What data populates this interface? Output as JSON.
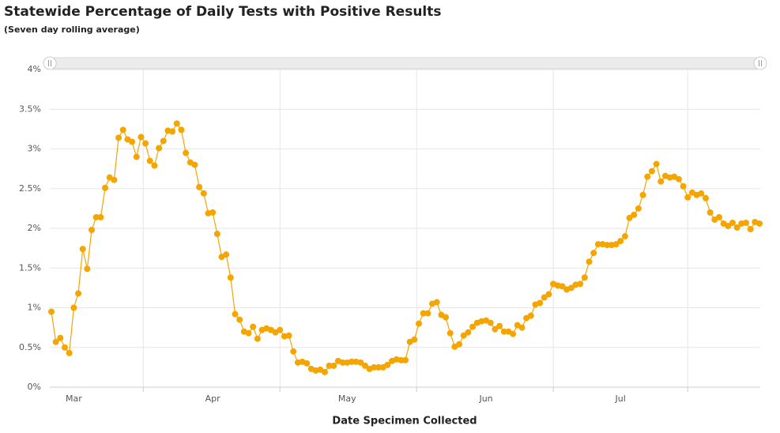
{
  "chart_data": {
    "type": "line",
    "title": "Statewide Percentage of Daily Tests with Positive Results",
    "subtitle": "(Seven day rolling average)",
    "x_label": "Date Specimen Collected",
    "color": "#f5a500",
    "grid": true,
    "ylim": [
      0,
      4
    ],
    "yticks": [
      {
        "value": 0,
        "label": "0%"
      },
      {
        "value": 0.5,
        "label": "0.5%"
      },
      {
        "value": 1,
        "label": "1%"
      },
      {
        "value": 1.5,
        "label": "1.5%"
      },
      {
        "value": 2,
        "label": "2%"
      },
      {
        "value": 2.5,
        "label": "2.5%"
      },
      {
        "value": 3,
        "label": "3%"
      },
      {
        "value": 3.5,
        "label": "3.5%"
      },
      {
        "value": 4,
        "label": "4%"
      }
    ],
    "categories": [
      null,
      null,
      null,
      null,
      null,
      "Mar",
      null,
      null,
      null,
      null,
      null,
      null,
      null,
      null,
      null,
      null,
      null,
      null,
      null,
      null,
      null,
      null,
      null,
      null,
      null,
      null,
      null,
      null,
      null,
      null,
      null,
      null,
      null,
      null,
      null,
      null,
      "Apr",
      null,
      null,
      null,
      null,
      null,
      null,
      null,
      null,
      null,
      null,
      null,
      null,
      null,
      null,
      null,
      null,
      null,
      null,
      null,
      null,
      null,
      null,
      null,
      null,
      null,
      null,
      null,
      null,
      null,
      "May",
      null,
      null,
      null,
      null,
      null,
      null,
      null,
      null,
      null,
      null,
      null,
      null,
      null,
      null,
      null,
      null,
      null,
      null,
      null,
      null,
      null,
      null,
      null,
      null,
      null,
      null,
      null,
      null,
      null,
      null,
      "Jun",
      null,
      null,
      null,
      null,
      null,
      null,
      null,
      null,
      null,
      null,
      null,
      null,
      null,
      null,
      null,
      null,
      null,
      null,
      null,
      null,
      null,
      null,
      null,
      null,
      null,
      null,
      null,
      null,
      null,
      "Jul",
      null,
      null,
      null,
      null,
      null,
      null,
      null,
      null,
      null,
      null,
      null,
      null,
      null,
      null,
      null,
      null,
      null,
      null,
      null,
      null,
      null,
      null,
      null,
      null,
      null,
      null,
      null,
      null,
      null,
      null,
      null
    ],
    "values": [
      0.95,
      0.57,
      0.62,
      0.5,
      0.43,
      1.0,
      1.18,
      1.74,
      1.49,
      1.98,
      2.14,
      2.14,
      2.51,
      2.64,
      2.61,
      3.14,
      3.24,
      3.12,
      3.09,
      2.9,
      3.15,
      3.07,
      2.85,
      2.79,
      3.01,
      3.1,
      3.23,
      3.22,
      3.32,
      3.24,
      2.95,
      2.83,
      2.8,
      2.52,
      2.44,
      2.19,
      2.2,
      1.93,
      1.64,
      1.67,
      1.38,
      0.92,
      0.85,
      0.7,
      0.68,
      0.76,
      0.61,
      0.72,
      0.74,
      0.72,
      0.69,
      0.72,
      0.64,
      0.65,
      0.45,
      0.31,
      0.32,
      0.3,
      0.23,
      0.21,
      0.22,
      0.19,
      0.27,
      0.27,
      0.33,
      0.31,
      0.31,
      0.32,
      0.32,
      0.31,
      0.27,
      0.23,
      0.25,
      0.25,
      0.25,
      0.28,
      0.33,
      0.35,
      0.34,
      0.34,
      0.57,
      0.6,
      0.8,
      0.93,
      0.93,
      1.05,
      1.07,
      0.91,
      0.88,
      0.68,
      0.51,
      0.54,
      0.65,
      0.69,
      0.76,
      0.81,
      0.83,
      0.84,
      0.81,
      0.73,
      0.77,
      0.7,
      0.7,
      0.67,
      0.78,
      0.75,
      0.87,
      0.9,
      1.04,
      1.06,
      1.13,
      1.17,
      1.3,
      1.28,
      1.27,
      1.23,
      1.25,
      1.29,
      1.3,
      1.38,
      1.58,
      1.69,
      1.8,
      1.8,
      1.79,
      1.79,
      1.8,
      1.84,
      1.9,
      2.13,
      2.17,
      2.25,
      2.42,
      2.65,
      2.72,
      2.81,
      2.59,
      2.66,
      2.64,
      2.65,
      2.62,
      2.53,
      2.39,
      2.45,
      2.42,
      2.44,
      2.38,
      2.2,
      2.11,
      2.14,
      2.06,
      2.03,
      2.07,
      2.01,
      2.06,
      2.07,
      1.99,
      2.08,
      2.06
    ]
  }
}
